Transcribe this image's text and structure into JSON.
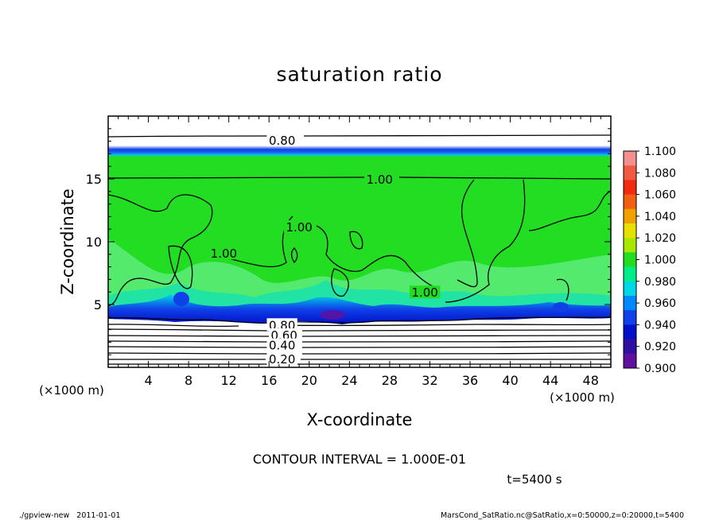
{
  "chart_data": {
    "type": "heatmap",
    "title": "saturation ratio",
    "xlabel": "X-coordinate",
    "ylabel": "Z-coordinate",
    "x_unit": "(×1000 m)",
    "y_unit": "(×1000 m)",
    "xlim": [
      0,
      50
    ],
    "ylim": [
      0,
      20
    ],
    "x_ticks": [
      4,
      8,
      12,
      16,
      20,
      24,
      28,
      32,
      36,
      40,
      44,
      48
    ],
    "y_ticks": [
      5,
      10,
      15
    ],
    "contour_interval_label": "CONTOUR INTERVAL = 1.000E-01",
    "time_label": "t=5400 s",
    "contour_labels": [
      {
        "text": "0.80",
        "x": 17.3,
        "z": 18.1
      },
      {
        "text": "1.00",
        "x": 27,
        "z": 15.0
      },
      {
        "text": "1.00",
        "x": 11.5,
        "z": 9.1
      },
      {
        "text": "1.00",
        "x": 19,
        "z": 11.2
      },
      {
        "text": "1.00",
        "x": 31.5,
        "z": 6.0
      },
      {
        "text": "0.80",
        "x": 17.3,
        "z": 3.4
      },
      {
        "text": "0.60",
        "x": 17.5,
        "z": 2.6
      },
      {
        "text": "0.40",
        "x": 17.3,
        "z": 1.8
      },
      {
        "text": "0.20",
        "x": 17.3,
        "z": 0.7
      }
    ],
    "colorbar": {
      "levels": [
        "1.100",
        "1.080",
        "1.060",
        "1.040",
        "1.020",
        "1.000",
        "0.980",
        "0.960",
        "0.940",
        "0.920",
        "0.900"
      ],
      "colors": [
        "#f39090",
        "#f05a40",
        "#f22a10",
        "#f06010",
        "#f0a000",
        "#e8e000",
        "#a8e800",
        "#22dd22",
        "#00ee88",
        "#00d8e8",
        "#0088ff",
        "#1040e8",
        "#0010c8",
        "#3010a0",
        "#6010a0"
      ]
    }
  },
  "footer": {
    "left": "./gpview-new   2011-01-01",
    "right": "MarsCond_SatRatio.nc@SatRatio,x=0:50000,z=0:20000,t=5400"
  }
}
